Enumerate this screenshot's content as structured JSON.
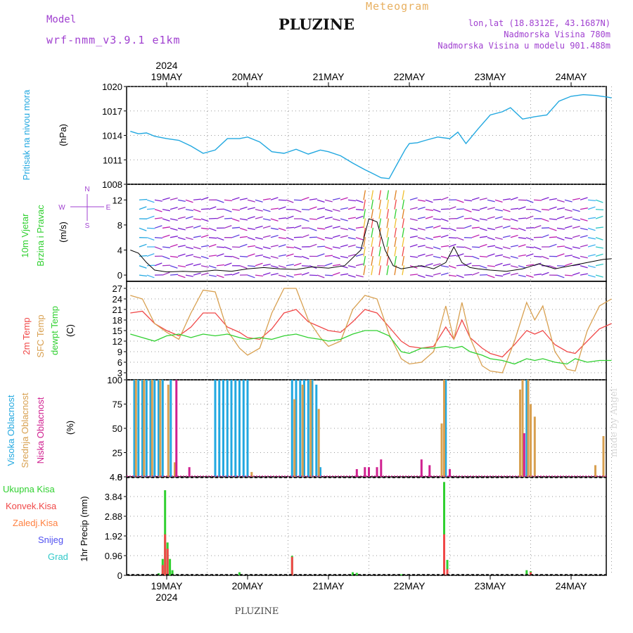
{
  "header": {
    "title": "PLUZINE",
    "model_label": "Model",
    "model_value": "wrf-nmm_v3.9.1 e1km",
    "meteogram": "Meteogram",
    "lonlat": "lon,lat (18.8312E, 43.1687N)",
    "altitude": "Nadmorska Visina 780m",
    "model_altitude": "Nadmorska Visina u modelu 901.488m"
  },
  "footer": {
    "station": "PLUZINE",
    "credit": "made by Angel"
  },
  "colors": {
    "pressure": "#22a8e0",
    "temp2m": "#f04848",
    "sfc_temp": "#d8a050",
    "dewpt": "#30d030",
    "visoka": "#22a8e0",
    "srednja": "#d8a050",
    "niska": "#d02090",
    "ukupna": "#30d030",
    "konvek": "#f04848",
    "zaledj": "#ff8040",
    "snijeg": "#5050f0",
    "grad": "#30c8c8"
  },
  "chart_data": [
    {
      "type": "line",
      "panel": "pressure",
      "ylabel_main": "Pritisak na nivou mora",
      "unit": "(hPa)",
      "ylim": [
        1008,
        1020
      ],
      "yticks": [
        "1020",
        "1017",
        "1014",
        "1011",
        "1008"
      ],
      "x_days": [
        "19MAY",
        "20MAY",
        "21MAY",
        "22MAY",
        "23MAY",
        "24MAY"
      ],
      "x_year": "2024",
      "x_range_days": [
        -0.45,
        5.5
      ],
      "series": [
        {
          "x": [
            -0.45,
            -0.35,
            -0.25,
            -0.15,
            0.0,
            0.15,
            0.3,
            0.45,
            0.6,
            0.75,
            0.9,
            1.0,
            1.15,
            1.3,
            1.45,
            1.6,
            1.75,
            1.9,
            2.0,
            2.15,
            2.3,
            2.45,
            2.55,
            2.65,
            2.75,
            2.85,
            2.95,
            3.0,
            3.1,
            3.2,
            3.35,
            3.5,
            3.6,
            3.7,
            3.85,
            4.0,
            4.15,
            4.25,
            4.4,
            4.55,
            4.7,
            4.85,
            5.0,
            5.15,
            5.3,
            5.45,
            5.5
          ],
          "values": [
            1014.5,
            1014.2,
            1014.3,
            1013.9,
            1013.6,
            1013.4,
            1012.7,
            1011.8,
            1012.2,
            1013.6,
            1013.6,
            1013.8,
            1013.2,
            1012.0,
            1011.8,
            1012.3,
            1011.7,
            1012.2,
            1012.0,
            1011.5,
            1010.6,
            1009.8,
            1009.3,
            1008.8,
            1008.7,
            1010.5,
            1012.3,
            1013.0,
            1013.1,
            1013.4,
            1013.8,
            1013.6,
            1014.4,
            1013.0,
            1014.8,
            1016.5,
            1016.9,
            1017.4,
            1016.0,
            1016.3,
            1016.5,
            1018.2,
            1018.8,
            1019.0,
            1018.9,
            1018.7,
            1018.6
          ]
        }
      ]
    },
    {
      "type": "vector",
      "panel": "wind",
      "ylabel_main": "10m Vjetar",
      "ylabel_sub": "Brzina i Pravac",
      "unit": "(m/s)",
      "ylim": [
        -1,
        14.5
      ],
      "yticks": [
        "12",
        "8",
        "4",
        "0"
      ],
      "compass": {
        "north": "N",
        "south": "S",
        "west": "W",
        "east": "E"
      },
      "speed_series": {
        "x": [
          -0.45,
          -0.35,
          -0.25,
          -0.15,
          0.0,
          0.2,
          0.4,
          0.6,
          0.8,
          1.0,
          1.2,
          1.4,
          1.6,
          1.8,
          2.0,
          2.2,
          2.4,
          2.5,
          2.6,
          2.7,
          2.8,
          2.9,
          3.0,
          3.15,
          3.3,
          3.45,
          3.55,
          3.65,
          3.75,
          3.85,
          4.0,
          4.2,
          4.4,
          4.6,
          4.8,
          5.0,
          5.2,
          5.4,
          5.5
        ],
        "values": [
          4.0,
          3.5,
          2.0,
          0.8,
          0.5,
          0.6,
          0.5,
          0.8,
          0.6,
          1.0,
          1.2,
          1.0,
          0.9,
          1.3,
          1.1,
          1.5,
          4.0,
          9.0,
          8.5,
          4.0,
          1.5,
          1.0,
          1.2,
          1.5,
          1.0,
          2.0,
          4.5,
          2.0,
          1.2,
          1.0,
          0.8,
          0.6,
          1.0,
          1.8,
          1.0,
          1.5,
          2.0,
          2.5,
          2.6
        ]
      }
    },
    {
      "type": "line",
      "panel": "temperature",
      "ylabel_lines": [
        "2m Temp",
        "SFC Temp",
        "dewpt Temp"
      ],
      "unit": "(C)",
      "ylim": [
        1,
        29
      ],
      "yticks": [
        "27",
        "24",
        "21",
        "18",
        "15",
        "12",
        "9",
        "6",
        "3"
      ],
      "x": [
        -0.45,
        -0.3,
        -0.15,
        0.0,
        0.15,
        0.3,
        0.45,
        0.6,
        0.75,
        0.9,
        1.0,
        1.15,
        1.3,
        1.45,
        1.6,
        1.75,
        1.9,
        2.0,
        2.15,
        2.3,
        2.45,
        2.6,
        2.75,
        2.9,
        3.0,
        3.15,
        3.3,
        3.45,
        3.55,
        3.65,
        3.75,
        3.9,
        4.0,
        4.15,
        4.3,
        4.45,
        4.55,
        4.65,
        4.8,
        4.95,
        5.05,
        5.2,
        5.35,
        5.5
      ],
      "series": [
        {
          "name": "2m Temp",
          "values": [
            20,
            20.5,
            17,
            15,
            13.5,
            16,
            20,
            20,
            16,
            14.5,
            13,
            12.5,
            15.5,
            20,
            21,
            17.5,
            16,
            15,
            14.5,
            17.5,
            21,
            20,
            16,
            12,
            10.5,
            10,
            10.5,
            16,
            12.5,
            18,
            13,
            10,
            8.5,
            7.5,
            11,
            15,
            14,
            15,
            11,
            9,
            8.5,
            12,
            15.5,
            17
          ]
        },
        {
          "name": "SFC Temp",
          "values": [
            25,
            24,
            17,
            14.5,
            12.5,
            20,
            26.5,
            26,
            15,
            10,
            8,
            10,
            20,
            27,
            27,
            18,
            13,
            10.5,
            12,
            21,
            25,
            24,
            14,
            7,
            5.5,
            6,
            9,
            22,
            12.5,
            23,
            13,
            5,
            3.5,
            3,
            12,
            23,
            18,
            22,
            9,
            4,
            3.5,
            15,
            22,
            24
          ]
        },
        {
          "name": "dewpt Temp",
          "values": [
            14,
            13,
            12,
            13.5,
            14,
            13,
            14,
            13.5,
            14,
            13,
            12.5,
            13,
            12.5,
            13.5,
            14,
            13,
            12.5,
            12,
            12.5,
            14,
            15,
            15,
            13.5,
            9,
            8.5,
            10,
            10,
            10.5,
            10,
            10.5,
            9,
            8,
            7,
            6.5,
            5.5,
            7,
            6.5,
            7,
            6,
            5.5,
            7,
            6,
            6.5,
            6.5
          ]
        }
      ]
    },
    {
      "type": "bar",
      "panel": "cloud",
      "ylabel_lines": [
        "Visoka Oblacnost",
        "Srednja Oblacnost",
        "Niska Oblacnost"
      ],
      "unit": "(%)",
      "ylim": [
        0,
        100
      ],
      "yticks": [
        "100",
        "75",
        "50",
        "25",
        "0"
      ],
      "series": [
        {
          "name": "Visoka Oblacnost",
          "bars": [
            [
              -0.4,
              100
            ],
            [
              -0.35,
              100
            ],
            [
              -0.3,
              100
            ],
            [
              -0.25,
              100
            ],
            [
              -0.2,
              100
            ],
            [
              -0.15,
              100
            ],
            [
              -0.1,
              100
            ],
            [
              -0.05,
              100
            ],
            [
              0.05,
              100
            ],
            [
              0.6,
              100
            ],
            [
              0.65,
              100
            ],
            [
              0.7,
              100
            ],
            [
              0.75,
              100
            ],
            [
              0.8,
              100
            ],
            [
              0.85,
              100
            ],
            [
              0.9,
              100
            ],
            [
              0.95,
              100
            ],
            [
              1.0,
              100
            ],
            [
              1.55,
              100
            ],
            [
              1.6,
              100
            ],
            [
              1.65,
              100
            ],
            [
              1.7,
              100
            ],
            [
              1.75,
              100
            ],
            [
              1.8,
              100
            ],
            [
              1.85,
              95
            ],
            [
              1.9,
              10
            ],
            [
              3.45,
              100
            ],
            [
              4.45,
              100
            ]
          ]
        },
        {
          "name": "Srednja Oblacnost",
          "bars": [
            [
              -0.38,
              100
            ],
            [
              -0.28,
              100
            ],
            [
              -0.18,
              100
            ],
            [
              -0.08,
              100
            ],
            [
              0.02,
              95
            ],
            [
              0.1,
              15
            ],
            [
              1.05,
              5
            ],
            [
              1.58,
              80
            ],
            [
              1.68,
              95
            ],
            [
              1.78,
              100
            ],
            [
              1.88,
              70
            ],
            [
              3.4,
              55
            ],
            [
              3.43,
              100
            ],
            [
              4.37,
              90
            ],
            [
              4.4,
              100
            ],
            [
              4.47,
              100
            ],
            [
              4.5,
              75
            ],
            [
              4.55,
              62
            ],
            [
              5.4,
              42
            ],
            [
              5.3,
              12
            ]
          ]
        },
        {
          "name": "Niska Oblacnost",
          "bars": [
            [
              0.12,
              100
            ],
            [
              0.28,
              10
            ],
            [
              2.35,
              8
            ],
            [
              2.45,
              10
            ],
            [
              2.5,
              10
            ],
            [
              2.6,
              10
            ],
            [
              2.65,
              18
            ],
            [
              3.15,
              18
            ],
            [
              3.25,
              12
            ],
            [
              3.5,
              8
            ],
            [
              4.42,
              45
            ]
          ]
        }
      ]
    },
    {
      "type": "bar",
      "panel": "precip",
      "ylabel_lines": [
        "Ukupna Kisa",
        "Konvek.Kisa",
        "Zaledj.Kisa",
        "Snijeg",
        "Grad"
      ],
      "unit": "1hr Precip (mm)",
      "ylim": [
        0,
        4.8
      ],
      "yticks": [
        "4.8",
        "3.84",
        "2.88",
        "1.92",
        "0.96",
        "0"
      ],
      "series": [
        {
          "name": "Ukupna Kisa",
          "bars": [
            [
              -0.05,
              0.8
            ],
            [
              -0.02,
              4.15
            ],
            [
              0.01,
              1.6
            ],
            [
              0.04,
              0.8
            ],
            [
              0.07,
              0.25
            ],
            [
              -0.1,
              0.1
            ],
            [
              2.9,
              0.05
            ],
            [
              0.9,
              0.15
            ],
            [
              2.3,
              0.15
            ],
            [
              2.35,
              0.12
            ],
            [
              1.55,
              0.95
            ],
            [
              3.43,
              4.55
            ],
            [
              3.47,
              0.75
            ],
            [
              4.45,
              0.25
            ],
            [
              4.5,
              0.2
            ]
          ]
        },
        {
          "name": "Konvek.Kisa",
          "bars": [
            [
              -0.05,
              0.5
            ],
            [
              -0.02,
              2.0
            ],
            [
              0.01,
              1.3
            ],
            [
              1.55,
              0.9
            ],
            [
              3.43,
              2.0
            ],
            [
              3.47,
              0.3
            ],
            [
              4.5,
              0.15
            ]
          ]
        }
      ]
    }
  ]
}
